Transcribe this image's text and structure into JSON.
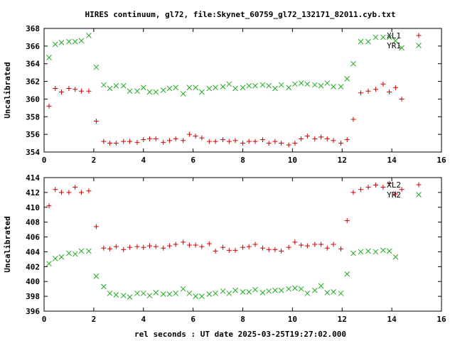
{
  "title": "HIRES continuum, gl72, file:Skynet_60759_gl72_132171_82011.cyb.txt",
  "xlabel": "rel seconds : UT date 2025-03-25T19:27:02.000",
  "colors": {
    "red": "#cc0000",
    "green": "#22aa22"
  },
  "chart_data": [
    {
      "type": "scatter",
      "ylabel": "Uncalibrated",
      "xlim": [
        0,
        16
      ],
      "ylim": [
        354,
        368
      ],
      "xticks": [
        0,
        2,
        4,
        6,
        8,
        10,
        12,
        14,
        16
      ],
      "yticks": [
        354,
        356,
        358,
        360,
        362,
        364,
        366,
        368
      ],
      "grid": false,
      "legend": "top-right",
      "series": [
        {
          "name": "XL1",
          "marker": "plus",
          "color": "#cc0000",
          "points": [
            [
              0.2,
              359.2
            ],
            [
              0.45,
              361.2
            ],
            [
              0.7,
              360.8
            ],
            [
              1.0,
              361.2
            ],
            [
              1.25,
              361.1
            ],
            [
              1.5,
              360.9
            ],
            [
              1.8,
              360.9
            ],
            [
              2.1,
              357.5
            ],
            [
              2.4,
              355.2
            ],
            [
              2.65,
              355.0
            ],
            [
              2.9,
              355.0
            ],
            [
              3.2,
              355.2
            ],
            [
              3.45,
              355.2
            ],
            [
              3.75,
              355.1
            ],
            [
              4.0,
              355.4
            ],
            [
              4.25,
              355.5
            ],
            [
              4.5,
              355.5
            ],
            [
              4.8,
              355.1
            ],
            [
              5.05,
              355.3
            ],
            [
              5.3,
              355.5
            ],
            [
              5.6,
              355.3
            ],
            [
              5.85,
              356.0
            ],
            [
              6.1,
              355.8
            ],
            [
              6.35,
              355.6
            ],
            [
              6.65,
              355.2
            ],
            [
              6.9,
              355.2
            ],
            [
              7.2,
              355.4
            ],
            [
              7.45,
              355.2
            ],
            [
              7.7,
              355.3
            ],
            [
              8.0,
              355.0
            ],
            [
              8.25,
              355.2
            ],
            [
              8.5,
              355.2
            ],
            [
              8.8,
              355.4
            ],
            [
              9.05,
              355.0
            ],
            [
              9.3,
              355.2
            ],
            [
              9.55,
              355.0
            ],
            [
              9.85,
              354.8
            ],
            [
              10.1,
              355.0
            ],
            [
              10.35,
              355.5
            ],
            [
              10.6,
              355.8
            ],
            [
              10.9,
              355.5
            ],
            [
              11.15,
              355.7
            ],
            [
              11.4,
              355.5
            ],
            [
              11.65,
              355.3
            ],
            [
              11.95,
              355.0
            ],
            [
              12.2,
              355.4
            ],
            [
              12.45,
              357.7
            ],
            [
              12.75,
              360.7
            ],
            [
              13.05,
              360.9
            ],
            [
              13.35,
              361.1
            ],
            [
              13.65,
              361.7
            ],
            [
              13.9,
              360.8
            ],
            [
              14.15,
              361.3
            ],
            [
              14.4,
              360.0
            ]
          ]
        },
        {
          "name": "YR1",
          "marker": "cross",
          "color": "#22aa22",
          "points": [
            [
              0.2,
              364.7
            ],
            [
              0.45,
              366.2
            ],
            [
              0.7,
              366.4
            ],
            [
              1.0,
              366.5
            ],
            [
              1.25,
              366.5
            ],
            [
              1.5,
              366.6
            ],
            [
              1.8,
              367.2
            ],
            [
              2.1,
              363.6
            ],
            [
              2.4,
              361.6
            ],
            [
              2.65,
              361.2
            ],
            [
              2.9,
              361.5
            ],
            [
              3.2,
              361.5
            ],
            [
              3.45,
              360.9
            ],
            [
              3.75,
              360.9
            ],
            [
              4.0,
              361.3
            ],
            [
              4.25,
              360.8
            ],
            [
              4.5,
              360.8
            ],
            [
              4.8,
              361.0
            ],
            [
              5.05,
              361.2
            ],
            [
              5.3,
              361.3
            ],
            [
              5.6,
              360.6
            ],
            [
              5.85,
              361.3
            ],
            [
              6.1,
              361.3
            ],
            [
              6.35,
              360.8
            ],
            [
              6.65,
              361.2
            ],
            [
              6.9,
              361.3
            ],
            [
              7.2,
              361.4
            ],
            [
              7.45,
              361.7
            ],
            [
              7.7,
              361.2
            ],
            [
              8.0,
              361.3
            ],
            [
              8.25,
              361.5
            ],
            [
              8.5,
              361.5
            ],
            [
              8.8,
              361.6
            ],
            [
              9.05,
              361.5
            ],
            [
              9.3,
              361.2
            ],
            [
              9.55,
              361.6
            ],
            [
              9.85,
              361.3
            ],
            [
              10.1,
              361.7
            ],
            [
              10.35,
              361.8
            ],
            [
              10.6,
              361.7
            ],
            [
              10.9,
              361.6
            ],
            [
              11.15,
              361.5
            ],
            [
              11.4,
              361.8
            ],
            [
              11.65,
              361.4
            ],
            [
              11.95,
              361.4
            ],
            [
              12.2,
              362.3
            ],
            [
              12.45,
              364.0
            ],
            [
              12.75,
              366.5
            ],
            [
              13.05,
              366.5
            ],
            [
              13.35,
              367.0
            ],
            [
              13.65,
              367.0
            ],
            [
              13.9,
              367.0
            ],
            [
              14.15,
              366.6
            ],
            [
              14.4,
              365.8
            ]
          ]
        }
      ]
    },
    {
      "type": "scatter",
      "ylabel": "Uncalibrated",
      "xlim": [
        0,
        16
      ],
      "ylim": [
        396,
        414
      ],
      "xticks": [
        0,
        2,
        4,
        6,
        8,
        10,
        12,
        14,
        16
      ],
      "yticks": [
        396,
        398,
        400,
        402,
        404,
        406,
        408,
        410,
        412,
        414
      ],
      "grid": false,
      "legend": "top-right",
      "series": [
        {
          "name": "XL2",
          "marker": "plus",
          "color": "#cc0000",
          "points": [
            [
              0.2,
              410.2
            ],
            [
              0.45,
              412.4
            ],
            [
              0.7,
              412.0
            ],
            [
              1.0,
              412.0
            ],
            [
              1.25,
              412.7
            ],
            [
              1.5,
              412.0
            ],
            [
              1.8,
              412.2
            ],
            [
              2.1,
              407.4
            ],
            [
              2.4,
              404.5
            ],
            [
              2.65,
              404.4
            ],
            [
              2.9,
              404.7
            ],
            [
              3.2,
              404.3
            ],
            [
              3.45,
              404.6
            ],
            [
              3.75,
              404.7
            ],
            [
              4.0,
              404.6
            ],
            [
              4.25,
              404.8
            ],
            [
              4.5,
              404.7
            ],
            [
              4.8,
              404.5
            ],
            [
              5.05,
              404.8
            ],
            [
              5.3,
              405.0
            ],
            [
              5.6,
              405.3
            ],
            [
              5.85,
              404.9
            ],
            [
              6.1,
              404.9
            ],
            [
              6.35,
              404.7
            ],
            [
              6.65,
              405.1
            ],
            [
              6.9,
              404.1
            ],
            [
              7.2,
              404.6
            ],
            [
              7.45,
              404.2
            ],
            [
              7.7,
              404.2
            ],
            [
              8.0,
              404.6
            ],
            [
              8.25,
              404.7
            ],
            [
              8.5,
              405.0
            ],
            [
              8.8,
              404.5
            ],
            [
              9.05,
              404.3
            ],
            [
              9.3,
              404.3
            ],
            [
              9.55,
              404.1
            ],
            [
              9.85,
              404.6
            ],
            [
              10.1,
              405.3
            ],
            [
              10.35,
              404.9
            ],
            [
              10.6,
              404.8
            ],
            [
              10.9,
              405.0
            ],
            [
              11.15,
              405.0
            ],
            [
              11.4,
              404.5
            ],
            [
              11.65,
              405.0
            ],
            [
              11.95,
              404.4
            ],
            [
              12.2,
              408.2
            ],
            [
              12.45,
              412.0
            ],
            [
              12.75,
              412.4
            ],
            [
              13.05,
              412.7
            ],
            [
              13.35,
              413.0
            ],
            [
              13.65,
              412.7
            ],
            [
              13.9,
              413.2
            ],
            [
              14.15,
              411.8
            ],
            [
              14.4,
              412.4
            ]
          ]
        },
        {
          "name": "YR2",
          "marker": "cross",
          "color": "#22aa22",
          "points": [
            [
              0.2,
              402.4
            ],
            [
              0.45,
              403.1
            ],
            [
              0.7,
              403.3
            ],
            [
              1.0,
              403.8
            ],
            [
              1.25,
              403.7
            ],
            [
              1.5,
              404.1
            ],
            [
              1.8,
              404.1
            ],
            [
              2.1,
              400.7
            ],
            [
              2.4,
              399.3
            ],
            [
              2.65,
              398.4
            ],
            [
              2.9,
              398.2
            ],
            [
              3.2,
              398.1
            ],
            [
              3.45,
              397.9
            ],
            [
              3.75,
              398.4
            ],
            [
              4.0,
              398.4
            ],
            [
              4.25,
              398.1
            ],
            [
              4.5,
              398.5
            ],
            [
              4.8,
              398.3
            ],
            [
              5.05,
              398.3
            ],
            [
              5.3,
              398.4
            ],
            [
              5.6,
              399.0
            ],
            [
              5.85,
              398.4
            ],
            [
              6.1,
              398.0
            ],
            [
              6.35,
              398.0
            ],
            [
              6.65,
              398.3
            ],
            [
              6.9,
              398.4
            ],
            [
              7.2,
              398.7
            ],
            [
              7.45,
              398.4
            ],
            [
              7.7,
              398.8
            ],
            [
              8.0,
              398.6
            ],
            [
              8.25,
              398.6
            ],
            [
              8.5,
              398.9
            ],
            [
              8.8,
              398.5
            ],
            [
              9.05,
              398.7
            ],
            [
              9.3,
              398.8
            ],
            [
              9.55,
              398.8
            ],
            [
              9.85,
              399.0
            ],
            [
              10.1,
              399.1
            ],
            [
              10.35,
              399.0
            ],
            [
              10.6,
              398.4
            ],
            [
              10.9,
              398.8
            ],
            [
              11.15,
              399.4
            ],
            [
              11.4,
              398.5
            ],
            [
              11.65,
              398.6
            ],
            [
              11.95,
              398.4
            ],
            [
              12.2,
              401.0
            ],
            [
              12.45,
              403.8
            ],
            [
              12.75,
              404.0
            ],
            [
              13.05,
              404.1
            ],
            [
              13.35,
              404.0
            ],
            [
              13.65,
              404.2
            ],
            [
              13.9,
              404.1
            ],
            [
              14.15,
              403.3
            ]
          ]
        }
      ]
    }
  ]
}
